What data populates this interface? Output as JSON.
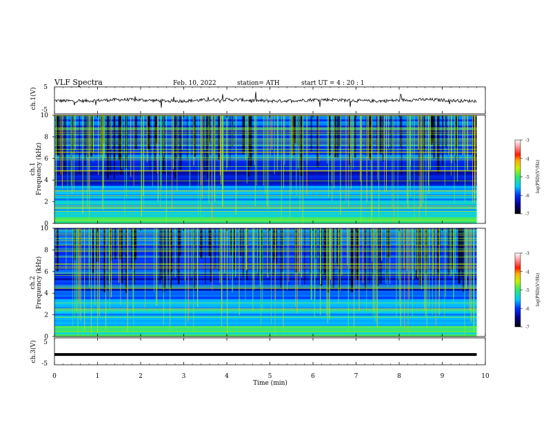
{
  "header": {
    "title": "VLF  Spectra",
    "date": "Feb. 10, 2022",
    "station": "station= ATH",
    "start": "start  UT  =   4  : 20 : 1"
  },
  "chart_data": [
    {
      "type": "line",
      "panel": "ch1-waveform",
      "ylabel": "ch.1(V)",
      "yticks": [
        "5",
        "-5"
      ],
      "ylim": [
        -5,
        5
      ],
      "xlim": [
        0,
        10
      ],
      "series": [
        {
          "values": [
            -0.5,
            0.5
          ]
        }
      ]
    },
    {
      "type": "heatmap",
      "panel": "ch1-spectrogram",
      "ylabel": "ch.1\nFrequency  (kHz)",
      "yticks": [
        "10",
        "8",
        "6",
        "4",
        "2",
        "0"
      ],
      "ylim": [
        0,
        10
      ],
      "xlim": [
        0,
        9.8
      ],
      "colorbar": {
        "label": "log(PSD)(V²/Hz)",
        "ticks": [
          "-3",
          "-4",
          "-5",
          "-6",
          "-7"
        ],
        "range": [
          -7,
          -3
        ]
      }
    },
    {
      "type": "heatmap",
      "panel": "ch2-spectrogram",
      "ylabel": "ch.2\nFrequency  (kHz)",
      "yticks": [
        "10",
        "8",
        "6",
        "4",
        "2",
        "0"
      ],
      "ylim": [
        0,
        10
      ],
      "xlim": [
        0,
        9.8
      ],
      "colorbar": {
        "label": "log(PSD)(V²/Hz)",
        "ticks": [
          "-3",
          "-4",
          "-5",
          "-6",
          "-7"
        ],
        "range": [
          -7,
          -3
        ]
      }
    },
    {
      "type": "line",
      "panel": "ch3-waveform",
      "ylabel": "ch.3(V)",
      "yticks": [
        "5",
        "-5"
      ],
      "ylim": [
        -5,
        5
      ],
      "xlim": [
        0,
        10
      ],
      "series": [
        {
          "values": [
            -1.2,
            -1.2
          ]
        }
      ]
    }
  ],
  "xaxis": {
    "label": "Time  (min)",
    "ticks": [
      "0",
      "1",
      "2",
      "3",
      "4",
      "5",
      "6",
      "7",
      "8",
      "9",
      "10"
    ]
  }
}
